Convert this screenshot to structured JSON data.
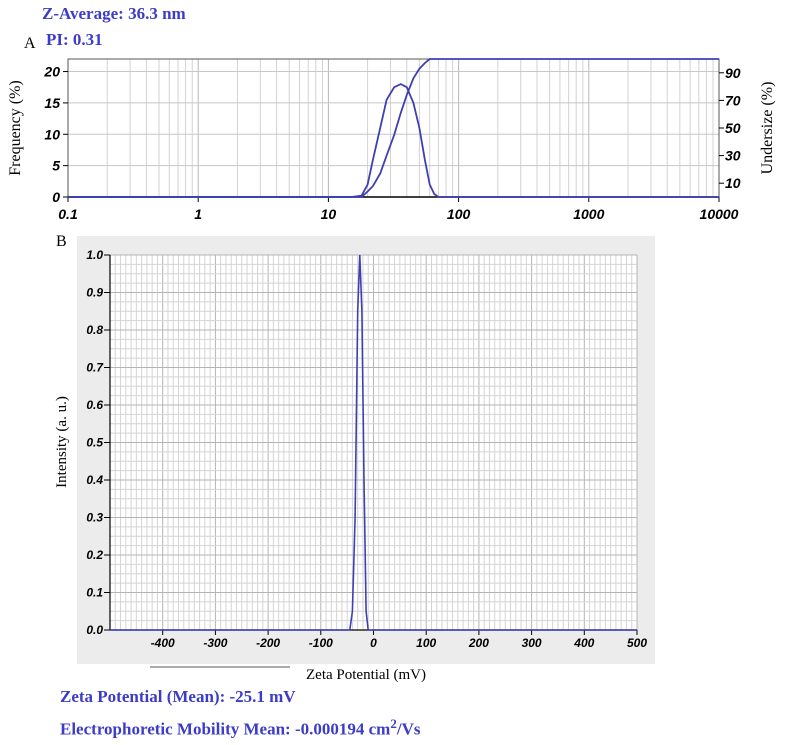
{
  "header": {
    "zaverage": "Z-Average: 36.3 nm",
    "pi": "PI: 0.31"
  },
  "footer": {
    "zeta_mean": "Zeta Potential (Mean): -25.1 mV",
    "mobility_prefix": "Electrophoretic Mobility Mean: -0.000194 cm",
    "mobility_exp": "2",
    "mobility_suffix": "/Vs"
  },
  "chart_data": [
    {
      "panel_label": "A",
      "type": "line",
      "xscale": "log",
      "xlim": [
        0.1,
        10000
      ],
      "xticks": [
        "0.1",
        "1",
        "10",
        "100",
        "1000",
        "10000"
      ],
      "ylabel": "Frequency (%)",
      "ylim": [
        0,
        22
      ],
      "yticks": [
        "0",
        "5",
        "10",
        "15",
        "20"
      ],
      "y2label": "Undersize (%)",
      "y2lim": [
        0,
        100
      ],
      "y2ticks": [
        "10",
        "30",
        "50",
        "70",
        "90"
      ],
      "grid": true,
      "series": [
        {
          "axis": "left",
          "x": [
            0.1,
            15,
            18,
            20,
            22,
            25,
            28,
            32,
            36,
            40,
            45,
            50,
            55,
            60,
            65,
            70,
            10000
          ],
          "y": [
            0,
            0,
            0.2,
            2,
            6,
            11,
            15.5,
            17.5,
            18,
            17.5,
            15,
            11,
            6,
            2,
            0.5,
            0,
            0
          ]
        },
        {
          "axis": "right",
          "x": [
            0.1,
            18,
            20,
            22,
            25,
            28,
            32,
            36,
            40,
            45,
            50,
            55,
            60,
            10000
          ],
          "y": [
            0,
            0,
            4,
            8,
            17,
            30,
            45,
            61,
            74,
            86,
            93,
            97,
            100,
            100
          ]
        }
      ]
    },
    {
      "panel_label": "B",
      "type": "line",
      "xlabel": "Zeta Potential (mV)",
      "xlim": [
        -500,
        500
      ],
      "xticks": [
        "-400",
        "-300",
        "-200",
        "-100",
        "0",
        "100",
        "200",
        "300",
        "400",
        "500"
      ],
      "ylabel": "Intensity (a. u.)",
      "ylim": [
        0,
        1
      ],
      "yticks": [
        "0.0",
        "0.1",
        "0.2",
        "0.3",
        "0.4",
        "0.5",
        "0.6",
        "0.7",
        "0.8",
        "0.9",
        "1.0"
      ],
      "grid": true,
      "series": [
        {
          "x": [
            -500,
            -45,
            -40,
            -35,
            -30,
            -26,
            -22,
            -18,
            -14,
            -10,
            500
          ],
          "y": [
            0,
            0,
            0.05,
            0.3,
            0.85,
            1.0,
            0.85,
            0.4,
            0.05,
            0,
            0
          ]
        }
      ]
    }
  ]
}
